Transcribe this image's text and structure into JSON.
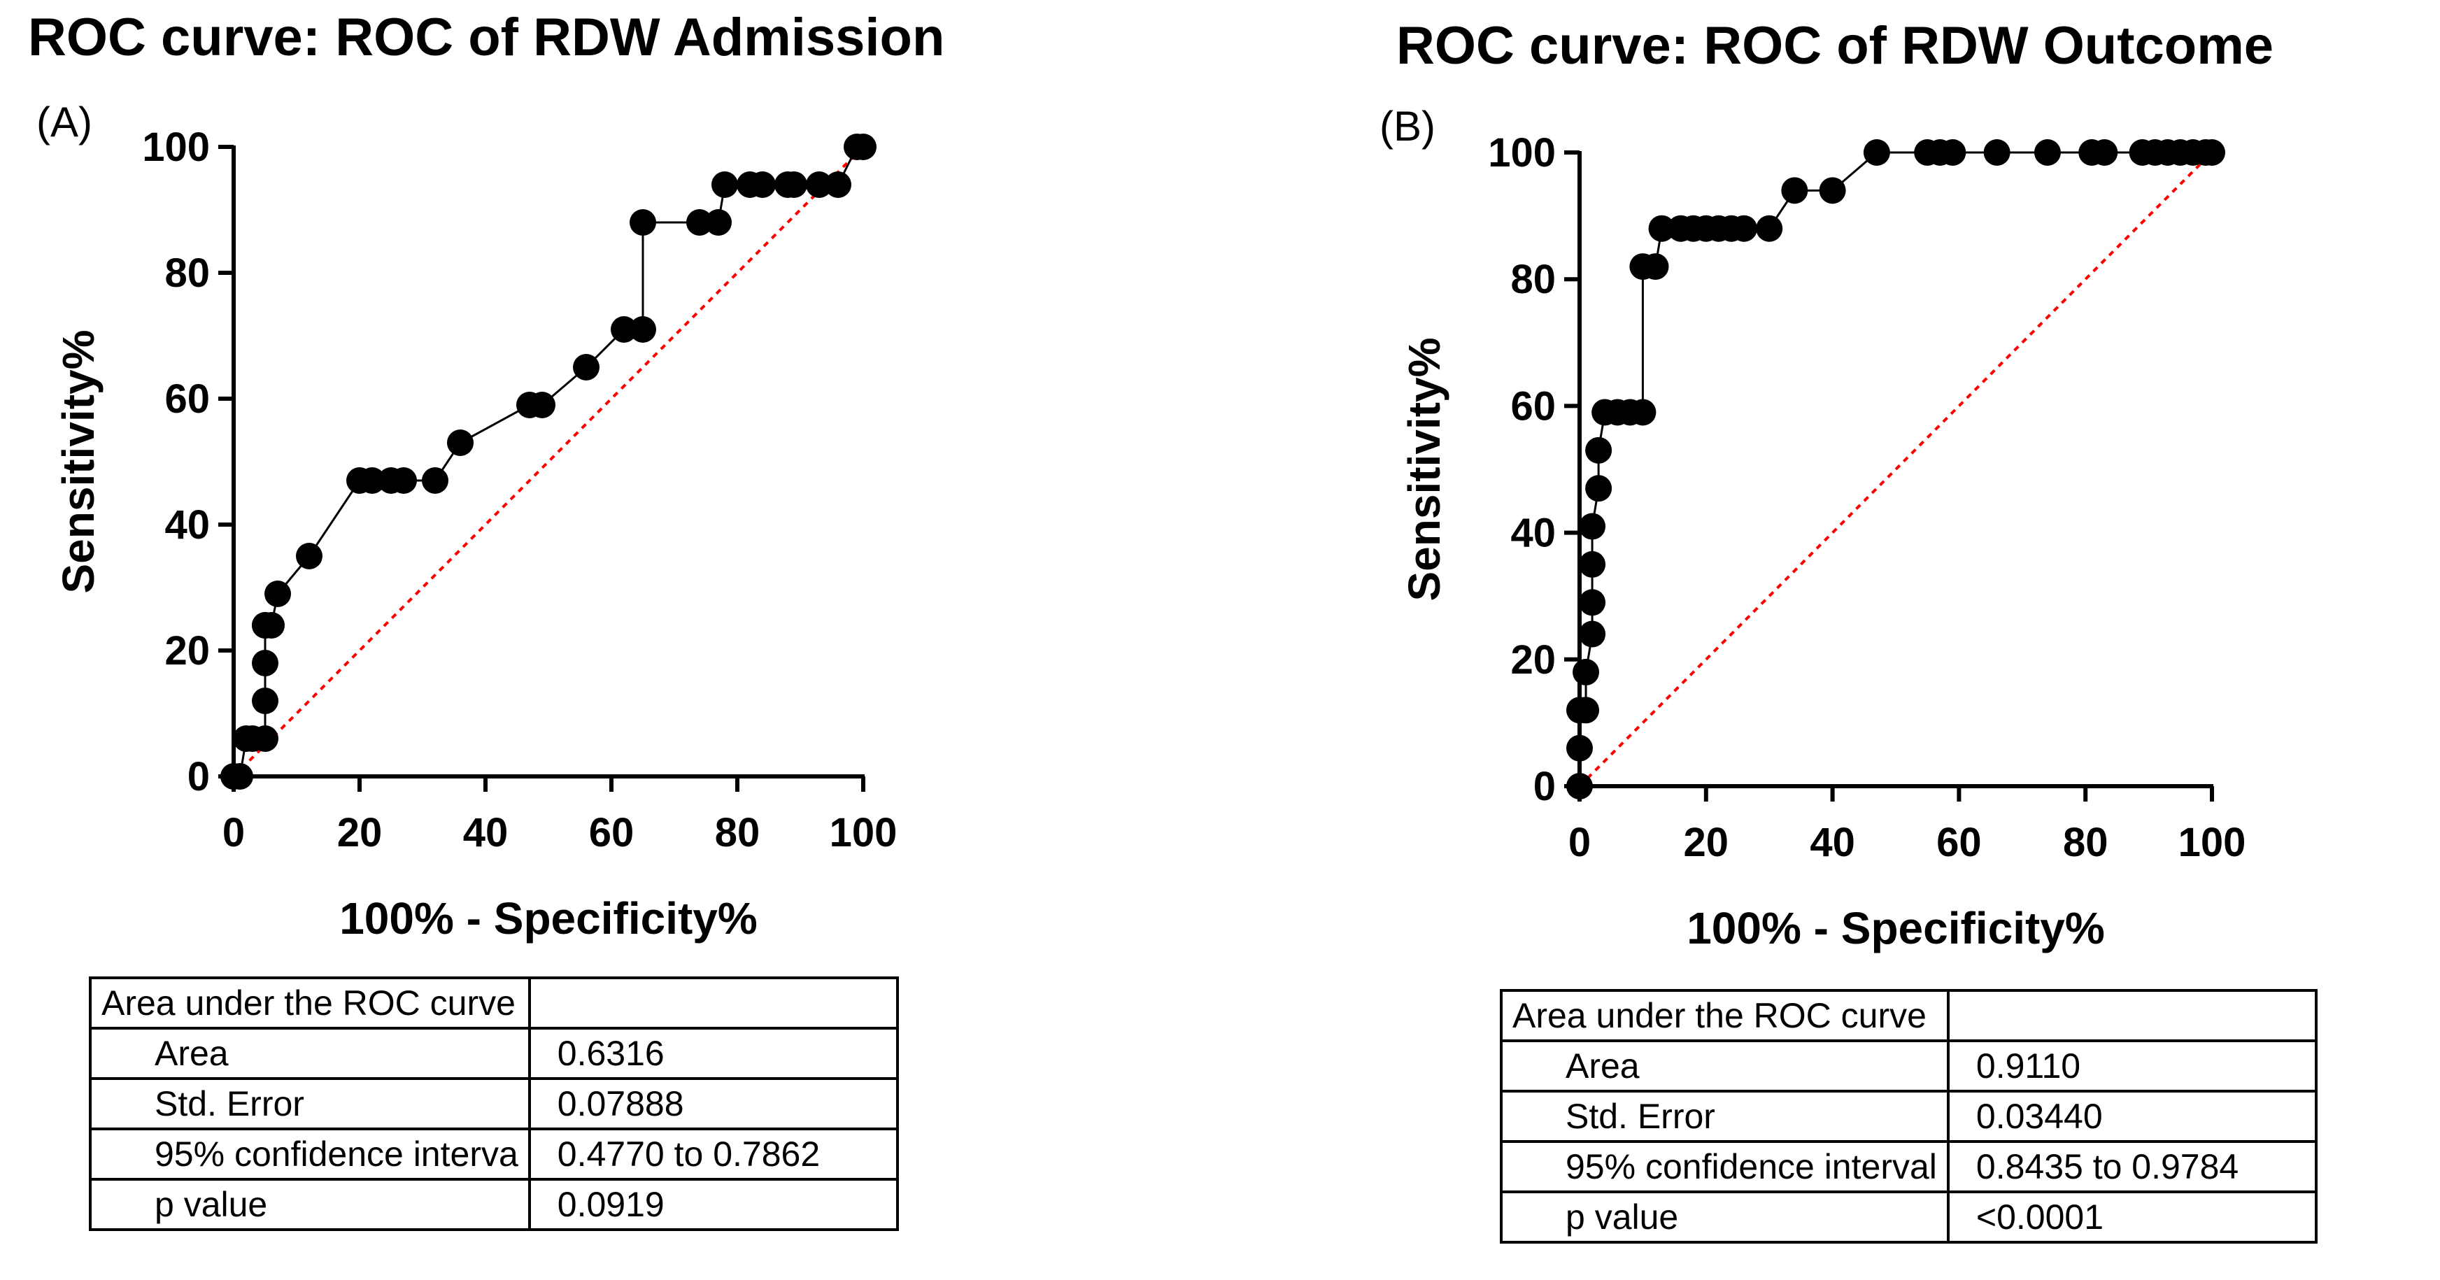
{
  "chart_data": [
    {
      "type": "line",
      "title": "ROC curve: ROC of RDW Admission",
      "panel_label": "(A)",
      "xlabel": "100% - Specificity%",
      "ylabel": "Sensitivity%",
      "xlim": [
        0,
        100
      ],
      "ylim": [
        0,
        100
      ],
      "x_ticks": [
        "0",
        "20",
        "40",
        "60",
        "80",
        "100"
      ],
      "y_ticks": [
        "0",
        "20",
        "40",
        "60",
        "80",
        "100"
      ],
      "grid": false,
      "reference_line": {
        "x": [
          0,
          100
        ],
        "y": [
          0,
          100
        ],
        "color": "#ff0000",
        "style": "dotted"
      },
      "series": [
        {
          "x": [
            0,
            1,
            2,
            3,
            5,
            5,
            5,
            5,
            5,
            6,
            7,
            12,
            20,
            22,
            25,
            27,
            32,
            36,
            47,
            49,
            56,
            62,
            65,
            65,
            74,
            77,
            78,
            82,
            84,
            88,
            89,
            93,
            96,
            99,
            100
          ],
          "y": [
            0,
            0,
            6,
            6,
            6,
            12,
            18,
            24,
            24,
            24,
            29,
            35,
            47,
            47,
            47,
            47,
            47,
            53,
            59,
            59,
            65,
            71,
            71,
            88,
            88,
            88,
            94,
            94,
            94,
            94,
            94,
            94,
            94,
            100,
            100
          ],
          "color": "#000000"
        }
      ],
      "table": {
        "header": "Area under the ROC curve",
        "rows": [
          {
            "label": "Area",
            "value": "0.6316"
          },
          {
            "label": "Std. Error",
            "value": "0.07888"
          },
          {
            "label": "95% confidence interva",
            "value": "0.4770 to 0.7862"
          },
          {
            "label": "p value",
            "value": "0.0919"
          }
        ]
      }
    },
    {
      "type": "line",
      "title": "ROC curve: ROC of RDW Outcome",
      "panel_label": "(B)",
      "xlabel": "100% - Specificity%",
      "ylabel": "Sensitivity%",
      "xlim": [
        0,
        100
      ],
      "ylim": [
        0,
        100
      ],
      "x_ticks": [
        "0",
        "20",
        "40",
        "60",
        "80",
        "100"
      ],
      "y_ticks": [
        "0",
        "20",
        "40",
        "60",
        "80",
        "100"
      ],
      "grid": false,
      "reference_line": {
        "x": [
          0,
          100
        ],
        "y": [
          0,
          100
        ],
        "color": "#ff0000",
        "style": "dotted"
      },
      "series": [
        {
          "x": [
            0,
            0,
            0,
            1,
            1,
            2,
            2,
            2,
            2,
            3,
            3,
            4,
            6,
            8,
            10,
            10,
            12,
            13,
            16,
            18,
            20,
            22,
            24,
            26,
            30,
            34,
            40,
            47,
            55,
            57,
            59,
            66,
            74,
            81,
            83,
            89,
            91,
            93,
            95,
            97,
            99,
            100
          ],
          "y": [
            0,
            6,
            12,
            12,
            18,
            24,
            29,
            35,
            41,
            47,
            53,
            59,
            59,
            59,
            59,
            82,
            82,
            88,
            88,
            88,
            88,
            88,
            88,
            88,
            88,
            94,
            94,
            100,
            100,
            100,
            100,
            100,
            100,
            100,
            100,
            100,
            100,
            100,
            100,
            100,
            100,
            100
          ],
          "color": "#000000"
        }
      ],
      "table": {
        "header": "Area under the ROC curve",
        "rows": [
          {
            "label": "Area",
            "value": "0.9110"
          },
          {
            "label": "Std. Error",
            "value": "0.03440"
          },
          {
            "label": "95% confidence interval",
            "value": "0.8435 to 0.9784"
          },
          {
            "label": "p value",
            "value": "<0.0001"
          }
        ]
      }
    }
  ]
}
